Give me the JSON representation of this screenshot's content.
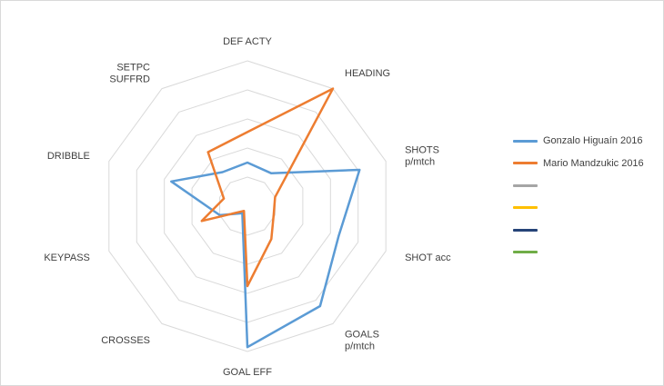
{
  "chart_data": {
    "type": "radar",
    "title": "",
    "axes": [
      {
        "label": [
          "DEF ACTY"
        ]
      },
      {
        "label": [
          "HEADING"
        ]
      },
      {
        "label": [
          "SHOTS",
          "p/mtch"
        ]
      },
      {
        "label": [
          "SHOT acc"
        ]
      },
      {
        "label": [
          "GOALS",
          "p/mtch"
        ]
      },
      {
        "label": [
          "GOAL EFF"
        ]
      },
      {
        "label": [
          "CROSSES"
        ]
      },
      {
        "label": [
          "KEYPASS"
        ]
      },
      {
        "label": [
          "DRIBBLE"
        ]
      },
      {
        "label": [
          "SETPC",
          "SUFFRD"
        ]
      }
    ],
    "rlim": [
      0,
      10
    ],
    "rings": 5,
    "series": [
      {
        "name": "Gonzalo Higuaín 2016",
        "color": "#5b9bd5",
        "values": [
          3.0,
          2.8,
          8.1,
          6.6,
          8.5,
          9.7,
          0.6,
          2.0,
          5.5,
          2.9
        ]
      },
      {
        "name": "Mario Mandzukic 2016",
        "color": "#ed7d31",
        "values": [
          5.1,
          10.0,
          2.0,
          1.9,
          2.8,
          5.5,
          0.4,
          3.3,
          1.7,
          4.6
        ]
      },
      {
        "name": "",
        "color": "#a5a5a5",
        "values": []
      },
      {
        "name": "",
        "color": "#ffc000",
        "values": []
      },
      {
        "name": "",
        "color": "#264478",
        "values": []
      },
      {
        "name": "",
        "color": "#70ad47",
        "values": []
      }
    ]
  },
  "colors": {
    "grid": "#d9d9d9",
    "text": "#404040"
  }
}
